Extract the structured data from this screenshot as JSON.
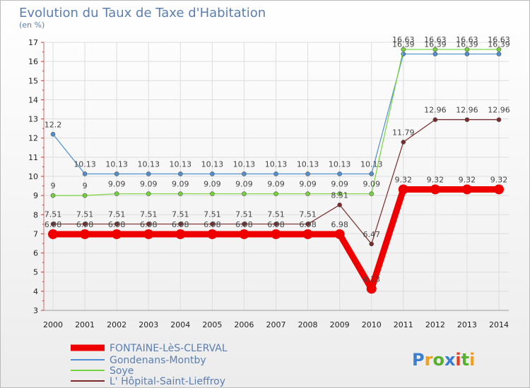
{
  "chart_data": {
    "type": "line",
    "title": "Evolution du Taux de Taxe d'Habitation",
    "subtitle": "(en %)",
    "xlabel": "",
    "ylabel": "",
    "x": [
      "2000",
      "2001",
      "2002",
      "2003",
      "2004",
      "2005",
      "2006",
      "2007",
      "2008",
      "2009",
      "2010",
      "2011",
      "2012",
      "2013",
      "2014"
    ],
    "ylim": [
      3,
      17
    ],
    "yticks": [
      "3",
      "4",
      "5",
      "6",
      "7",
      "8",
      "9",
      "10",
      "11",
      "12",
      "13",
      "14",
      "15",
      "16",
      "17"
    ],
    "grid": true,
    "legend_position": "bottom-left",
    "series": [
      {
        "name": "FONTAINE-LèS-CLERVAL",
        "color": "#ee0000",
        "values": [
          6.98,
          6.98,
          6.98,
          6.98,
          6.98,
          6.98,
          6.98,
          6.98,
          6.98,
          6.98,
          4.13,
          9.32,
          9.32,
          9.32,
          9.32
        ],
        "labels": [
          "6.98",
          "6.98",
          "6.98",
          "6.98",
          "6.98",
          "6.98",
          "6.98",
          "6.98",
          "6.98",
          "6.98",
          "4.13",
          "9.32",
          "9.32",
          "9.32",
          "9.32"
        ]
      },
      {
        "name": "Gondenans-Montby",
        "color": "#4f8fcf",
        "values": [
          12.2,
          10.13,
          10.13,
          10.13,
          10.13,
          10.13,
          10.13,
          10.13,
          10.13,
          10.13,
          10.13,
          16.39,
          16.39,
          16.39,
          16.39
        ],
        "labels": [
          "12.2",
          "10.13",
          "10.13",
          "10.13",
          "10.13",
          "10.13",
          "10.13",
          "10.13",
          "10.13",
          "10.13",
          "10.13",
          "16.39",
          "16.39",
          "16.39",
          "16.39"
        ]
      },
      {
        "name": "Soye",
        "color": "#77d33c",
        "values": [
          9,
          9,
          9.09,
          9.09,
          9.09,
          9.09,
          9.09,
          9.09,
          9.09,
          9.09,
          9.09,
          16.63,
          16.63,
          16.63,
          16.63
        ],
        "labels": [
          "9",
          "9",
          "9.09",
          "9.09",
          "9.09",
          "9.09",
          "9.09",
          "9.09",
          "9.09",
          "9.09",
          "9.09",
          "16.63",
          "16.63",
          "16.63",
          "16.63"
        ]
      },
      {
        "name": "L' Hôpital-Saint-Lieffroy",
        "color": "#7a2a2a",
        "values": [
          7.51,
          7.51,
          7.51,
          7.51,
          7.51,
          7.51,
          7.51,
          7.51,
          7.51,
          8.51,
          6.47,
          11.79,
          12.96,
          12.96,
          12.96
        ],
        "labels": [
          "7.51",
          "7.51",
          "7.51",
          "7.51",
          "7.51",
          "7.51",
          "7.51",
          "7.51",
          "7.51",
          "8.51",
          "6.47",
          "11.79",
          "12.96",
          "12.96",
          "12.96"
        ]
      }
    ]
  },
  "brand": {
    "logo_text": "Proxiti",
    "colors": [
      "#3a7fd0",
      "#f0a020",
      "#58b030",
      "#3a7fd0",
      "#e04020",
      "#58b030",
      "#f0a020"
    ]
  }
}
